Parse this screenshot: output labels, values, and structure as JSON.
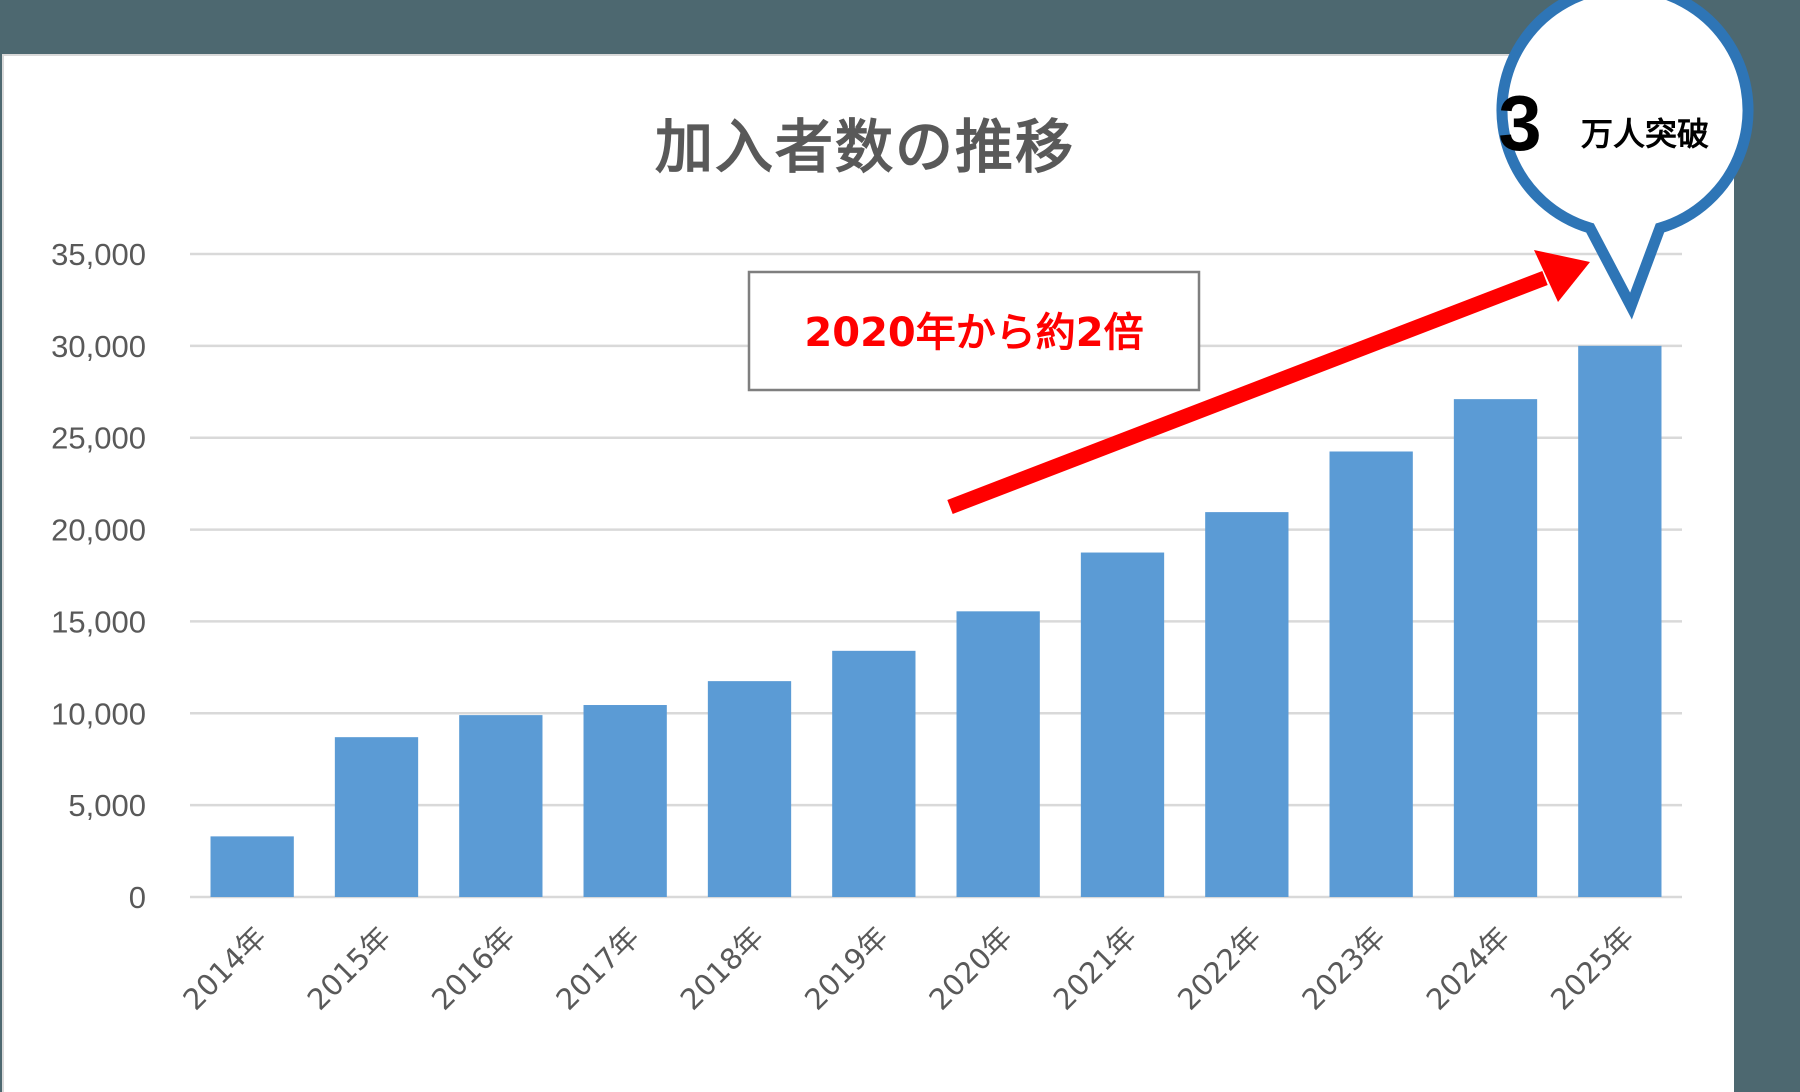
{
  "chart_data": {
    "type": "bar",
    "title": "加入者数の推移",
    "xlabel": "",
    "ylabel": "",
    "categories": [
      "2014年",
      "2015年",
      "2016年",
      "2017年",
      "2018年",
      "2019年",
      "2020年",
      "2021年",
      "2022年",
      "2023年",
      "2024年",
      "2025年"
    ],
    "values": [
      3300,
      8700,
      9900,
      10450,
      11750,
      13400,
      15550,
      18750,
      20950,
      24250,
      27100,
      30000
    ],
    "ylim": [
      0,
      35000
    ],
    "yticks": [
      0,
      5000,
      10000,
      15000,
      20000,
      25000,
      30000,
      35000
    ],
    "ytick_labels": [
      "0",
      "5,000",
      "10,000",
      "15,000",
      "20,000",
      "25,000",
      "30,000",
      "35,000"
    ],
    "grid": true,
    "legend": null,
    "bar_color": "#5b9bd5",
    "annotations": [
      {
        "type": "textbox",
        "text": "2020年から約2倍",
        "color": "#ff0000",
        "border": "#7f7f7f"
      },
      {
        "type": "arrow",
        "color": "#ff0000",
        "from": "2019年",
        "to": "2025年"
      },
      {
        "type": "speech-bubble",
        "number": "3",
        "text": "万人突破",
        "border": "#2e75b6"
      }
    ]
  },
  "colors": {
    "background": "#4d6870",
    "panel": "#ffffff",
    "gridline": "#d9d9d9",
    "bar": "#5b9bd5",
    "arrow": "#ff0000",
    "bubble_border": "#2e75b6"
  }
}
